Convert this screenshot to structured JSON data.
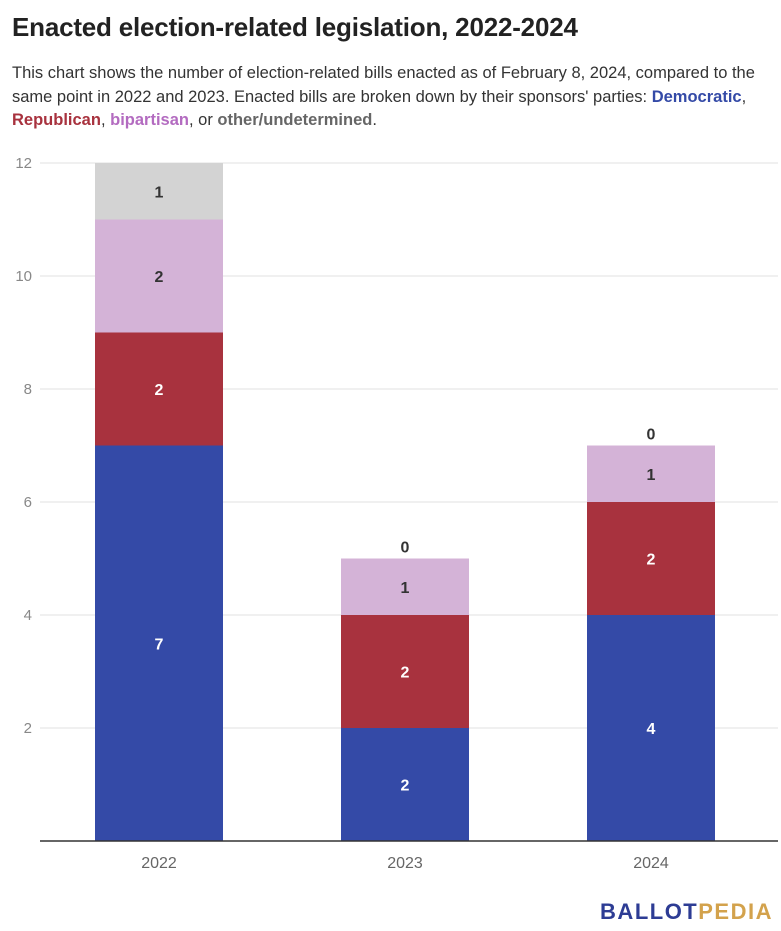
{
  "title": "Enacted election-related legislation, 2022-2024",
  "subtitle": {
    "intro": "This chart shows the number of election-related bills enacted as of February 8, 2024, compared to the same point in 2022 and 2023. Enacted bills are broken down by their sponsors' parties:",
    "democratic": "Democratic",
    "sep1": ", ",
    "republican": "Republican",
    "sep2": ", ",
    "bipartisan": "bipartisan",
    "sep3": ", or ",
    "other": "other/undetermined",
    "end": "."
  },
  "colors": {
    "democratic": "#344aa7",
    "republican": "#a8323e",
    "bipartisan": "#d4b3d7",
    "bipartisan_text": "#b36bc0",
    "other": "#d3d3d3",
    "other_text": "#666666",
    "axis_text": "#888888",
    "grid": "#e0e0e0"
  },
  "logo": {
    "ballot": "BALLOT",
    "pedia": "PEDIA",
    "ballot_color": "#2d3c94",
    "pedia_color": "#d3a24c"
  },
  "chart_data": {
    "type": "bar",
    "stacked": true,
    "categories": [
      "2022",
      "2023",
      "2024"
    ],
    "series": [
      {
        "name": "Democratic",
        "values": [
          7,
          2,
          4
        ],
        "labels": [
          "7",
          "2",
          "4"
        ]
      },
      {
        "name": "Republican",
        "values": [
          2,
          2,
          2
        ],
        "labels": [
          "2",
          "2",
          "2"
        ]
      },
      {
        "name": "bipartisan",
        "values": [
          2,
          1,
          1
        ],
        "labels": [
          "2",
          "1",
          "1"
        ]
      },
      {
        "name": "other/undetermined",
        "values": [
          1,
          0,
          0
        ],
        "labels": [
          "1",
          "0",
          "0"
        ]
      }
    ],
    "ylim": [
      0,
      12
    ],
    "yticks": [
      "2",
      "4",
      "6",
      "8",
      "10",
      "12"
    ],
    "grid": true,
    "xlabel": "",
    "ylabel": ""
  }
}
